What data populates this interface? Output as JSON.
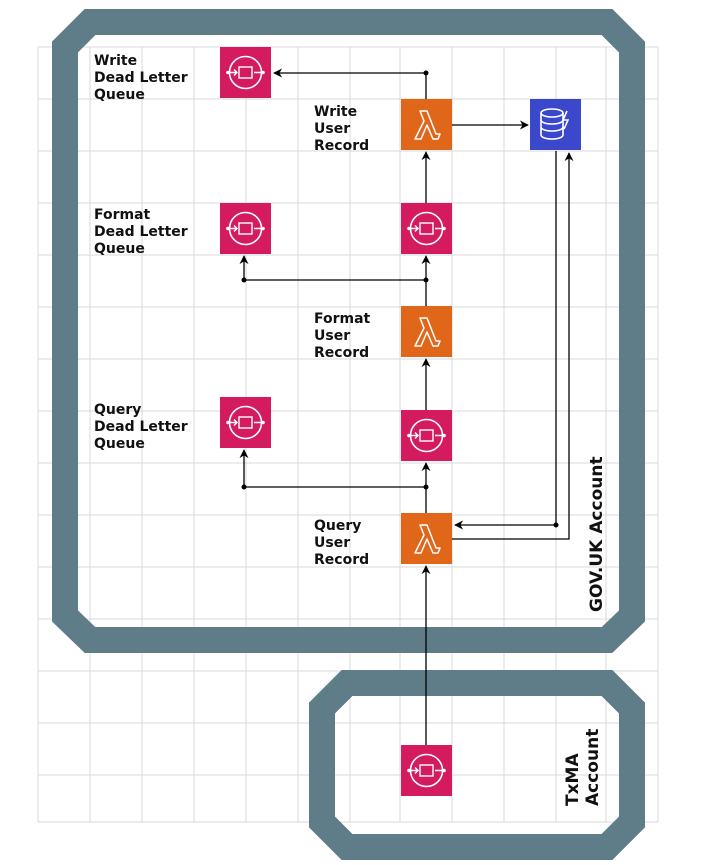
{
  "accounts": {
    "govuk": {
      "label": "GOV.UK Account"
    },
    "txma": {
      "label_line1": "TxMA",
      "label_line2": "Account"
    }
  },
  "labels": {
    "write_dlq": [
      "Write",
      "Dead Letter",
      "Queue"
    ],
    "write_lambda": [
      "Write",
      "User",
      "Record"
    ],
    "format_dlq": [
      "Format",
      "Dead Letter",
      "Queue"
    ],
    "format_lambda": [
      "Format",
      "User",
      "Record"
    ],
    "query_dlq": [
      "Query",
      "Dead Letter",
      "Queue"
    ],
    "query_lambda": [
      "Query",
      "User",
      "Record"
    ]
  },
  "colors": {
    "border": "#5f7c89",
    "queue": "#d51b5f",
    "lambda": "#e0661a",
    "dynamodb": "#3b48cc",
    "grid": "#d8d8d8",
    "line": "#000000"
  },
  "icons": {
    "queue": "sqs-queue-icon",
    "lambda": "lambda-icon",
    "database": "dynamodb-icon"
  }
}
